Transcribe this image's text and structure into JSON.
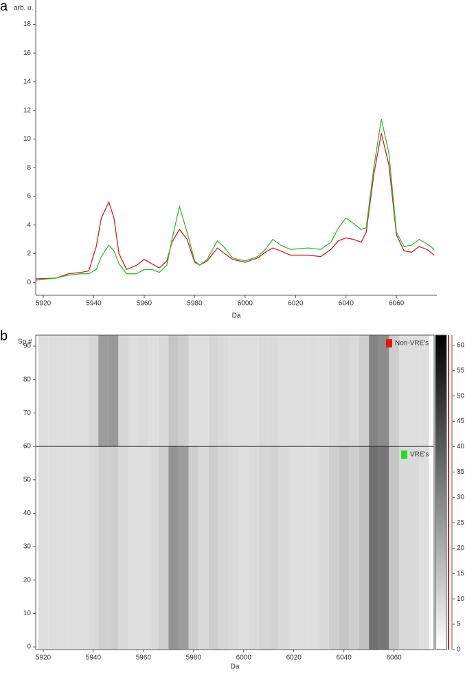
{
  "chart_data": [
    {
      "type": "line",
      "panel": "a",
      "xlabel": "Da",
      "yunit": "arb. u.",
      "xlim": [
        5917,
        6076
      ],
      "xticks": [
        5920,
        5940,
        5960,
        5980,
        6000,
        6020,
        6040,
        6060
      ],
      "ylim": [
        -0.9,
        19.7
      ],
      "yticks": [
        0,
        2,
        4,
        6,
        8,
        10,
        12,
        14,
        16,
        18
      ],
      "x": [
        5917,
        5925,
        5930,
        5935,
        5938,
        5941,
        5943,
        5946,
        5948,
        5950,
        5953,
        5957,
        5960,
        5963,
        5966,
        5969,
        5971,
        5974,
        5977,
        5980,
        5982,
        5985,
        5989,
        5992,
        5995,
        6000,
        6005,
        6008,
        6011,
        6014,
        6018,
        6025,
        6030,
        6034,
        6037,
        6040,
        6043,
        6046,
        6048,
        6051,
        6054,
        6057,
        6060,
        6063,
        6066,
        6069,
        6072,
        6075
      ],
      "series": [
        {
          "color": "#cc2222",
          "values": [
            0.25,
            0.3,
            0.6,
            0.7,
            0.8,
            2.5,
            4.5,
            5.6,
            4.5,
            2.0,
            0.9,
            1.2,
            1.6,
            1.3,
            1.0,
            1.5,
            2.8,
            3.7,
            3.0,
            1.4,
            1.2,
            1.5,
            2.4,
            2.0,
            1.6,
            1.4,
            1.7,
            2.1,
            2.4,
            2.2,
            1.9,
            1.9,
            1.8,
            2.3,
            2.9,
            3.1,
            3.0,
            2.8,
            3.5,
            7.5,
            10.4,
            8.2,
            3.3,
            2.2,
            2.1,
            2.5,
            2.3,
            1.9
          ]
        },
        {
          "color": "#33bb33",
          "values": [
            0.15,
            0.3,
            0.5,
            0.6,
            0.6,
            0.9,
            1.8,
            2.6,
            2.2,
            1.3,
            0.6,
            0.6,
            0.9,
            0.9,
            0.7,
            1.2,
            3.0,
            5.3,
            3.5,
            1.5,
            1.2,
            1.6,
            2.9,
            2.4,
            1.7,
            1.5,
            1.8,
            2.3,
            3.0,
            2.6,
            2.3,
            2.4,
            2.3,
            2.8,
            3.8,
            4.5,
            4.1,
            3.7,
            3.8,
            8.0,
            11.4,
            9.0,
            3.5,
            2.5,
            2.6,
            3.0,
            2.7,
            2.3
          ]
        }
      ]
    },
    {
      "type": "heatmap",
      "panel": "b",
      "xlabel": "Da",
      "ylabel": "Sp.#",
      "xlim": [
        5917,
        6076
      ],
      "xticks": [
        5920,
        5940,
        5960,
        5980,
        6000,
        6020,
        6040,
        6060
      ],
      "ylim": [
        -0.8,
        93.3
      ],
      "yticks": [
        0,
        10,
        20,
        30,
        40,
        50,
        60,
        70,
        80,
        90
      ],
      "divider": 60,
      "x": [
        5920,
        5924,
        5928,
        5932,
        5936,
        5940,
        5944,
        5948,
        5952,
        5956,
        5960,
        5964,
        5968,
        5972,
        5976,
        5980,
        5984,
        5988,
        5992,
        5996,
        6000,
        6004,
        6008,
        6012,
        6016,
        6020,
        6024,
        6028,
        6032,
        6036,
        6040,
        6044,
        6048,
        6052,
        6056,
        6060,
        6064,
        6068,
        6072
      ],
      "series": [
        {
          "name": "Non-VRE's",
          "color": "#ee1111",
          "values": [
            8,
            8,
            8,
            8,
            8,
            10,
            24,
            25,
            10,
            8,
            9,
            8,
            9,
            14,
            12,
            8,
            8,
            10,
            9,
            8,
            8,
            8,
            9,
            9,
            8,
            8,
            8,
            8,
            8,
            9,
            10,
            9,
            12,
            30,
            28,
            12,
            8,
            8,
            8
          ]
        },
        {
          "name": "VRE's",
          "color": "#22dd22",
          "values": [
            8,
            8,
            8,
            8,
            8,
            9,
            12,
            12,
            9,
            8,
            8,
            9,
            12,
            26,
            24,
            12,
            9,
            12,
            10,
            9,
            8,
            9,
            10,
            11,
            9,
            8,
            8,
            8,
            9,
            12,
            14,
            12,
            15,
            35,
            33,
            14,
            9,
            9,
            8
          ]
        }
      ],
      "colorbar_lim": [
        0,
        62
      ],
      "colorbar_ticks": [
        0,
        5,
        10,
        15,
        20,
        25,
        30,
        35,
        40,
        45,
        50,
        55,
        60
      ]
    }
  ]
}
